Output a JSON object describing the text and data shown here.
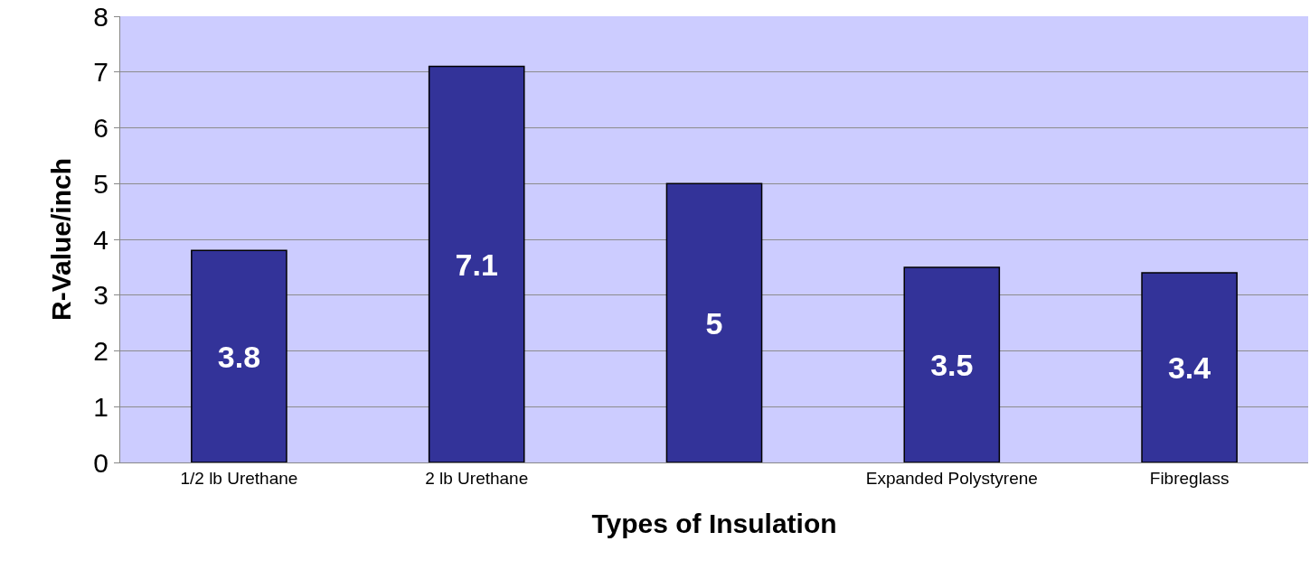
{
  "chart_data": {
    "type": "bar",
    "xlabel": "Types of Insulation",
    "ylabel": "R-Value/inch",
    "categories": [
      "1/2 lb Urethane",
      "2 lb Urethane",
      null,
      "Expanded Polystyrene",
      "Fibreglass"
    ],
    "values": [
      3.8,
      7.1,
      5,
      3.5,
      3.4
    ],
    "color": "#333399",
    "data_labels": true,
    "ylim": [
      0,
      8
    ],
    "yticks": [
      0,
      1,
      2,
      3,
      4,
      5,
      6,
      7,
      8
    ],
    "grid": "y"
  }
}
